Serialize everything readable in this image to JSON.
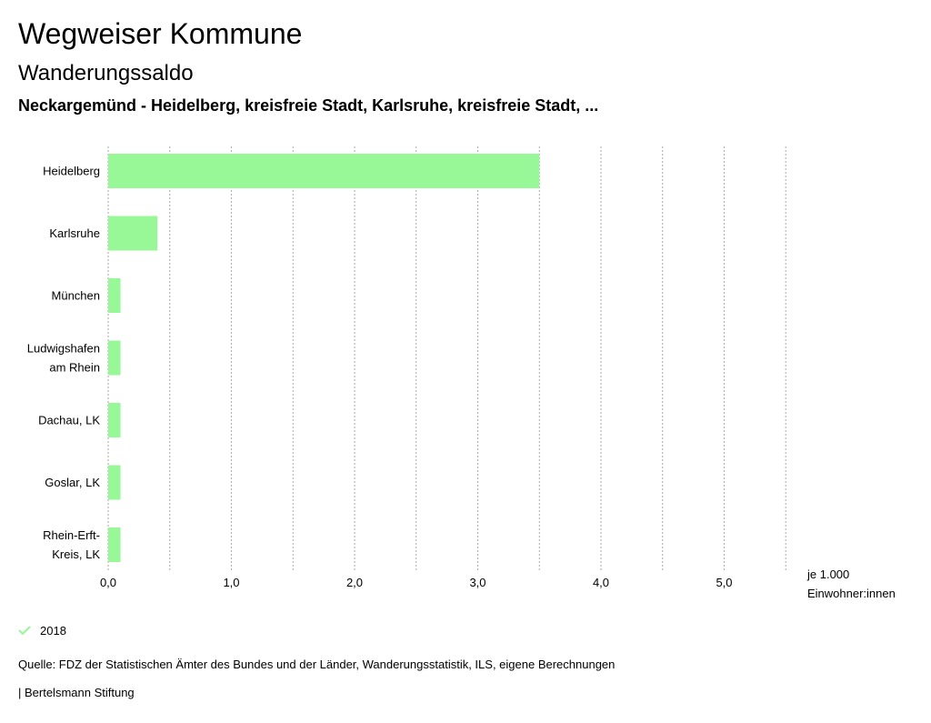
{
  "header": {
    "title": "Wegweiser Kommune",
    "subtitle": "Wanderungssaldo",
    "region": "Neckargemünd - Heidelberg, kreisfreie Stadt, Karlsruhe, kreisfreie Stadt, ..."
  },
  "chart_data": {
    "type": "bar",
    "orientation": "horizontal",
    "categories": [
      [
        "Heidelberg"
      ],
      [
        "Karlsruhe"
      ],
      [
        "München"
      ],
      [
        "Ludwigshafen",
        "am Rhein"
      ],
      [
        "Dachau, LK"
      ],
      [
        "Goslar, LK"
      ],
      [
        "Rhein-Erft-",
        "Kreis, LK"
      ]
    ],
    "series": [
      {
        "name": "2018",
        "color": "#98f898",
        "values": [
          3.5,
          0.4,
          0.1,
          0.1,
          0.1,
          0.1,
          0.1
        ]
      }
    ],
    "x_ticks": [
      "0,0",
      "1,0",
      "2,0",
      "3,0",
      "4,0",
      "5,0"
    ],
    "xlim": [
      0,
      5.5
    ],
    "x_unit": [
      "je 1.000",
      "Einwohner:innen"
    ],
    "grid": true,
    "legend_position": "bottom-left"
  },
  "legend": {
    "label": "2018",
    "color": "#98f898"
  },
  "source": "Quelle: FDZ der Statistischen Ämter des Bundes und der Länder, Wanderungsstatistik, ILS, eigene Berechnungen",
  "footer": "| Bertelsmann Stiftung"
}
